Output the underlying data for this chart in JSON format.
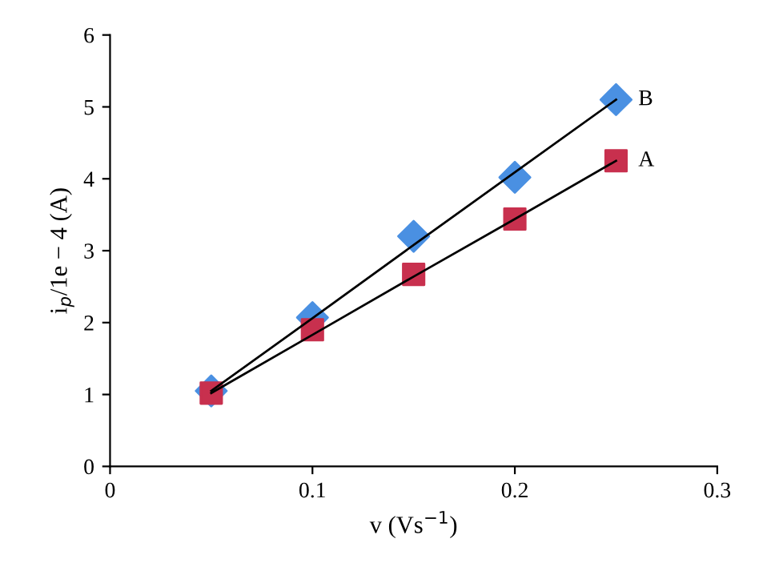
{
  "chart_data": {
    "type": "scatter",
    "xlabel": "v (Vs$^{−1}$)",
    "ylabel": "i$_{p}$/1e − 4 (A)",
    "x": [
      0.05,
      0.1,
      0.15,
      0.2,
      0.25
    ],
    "series": [
      {
        "name": "B",
        "marker": "diamond",
        "color": "#4a90e2",
        "values": [
          1.05,
          2.07,
          3.2,
          4.02,
          5.1
        ]
      },
      {
        "name": "A",
        "marker": "square",
        "color": "#c8304e",
        "values": [
          1.02,
          1.9,
          2.67,
          3.44,
          4.25
        ]
      },
      {
        "type": "line",
        "x": [
          0.05,
          0.1,
          0.15,
          0.2,
          0.25
        ],
        "color": "#000000",
        "values": [
          1.05,
          2.06,
          3.08,
          4.09,
          5.1
        ]
      },
      {
        "type": "line",
        "x": [
          0.05,
          0.1,
          0.15,
          0.2,
          0.25
        ],
        "color": "#000000",
        "values": [
          1.02,
          1.83,
          2.64,
          3.44,
          4.25
        ]
      }
    ],
    "xlim": [
      0,
      0.3
    ],
    "xticks": [
      0,
      0.1,
      0.2,
      0.3
    ],
    "ylim": [
      0,
      6
    ],
    "yticks": [
      0,
      1,
      2,
      3,
      4,
      5,
      6
    ],
    "grid": false,
    "legend": false
  }
}
